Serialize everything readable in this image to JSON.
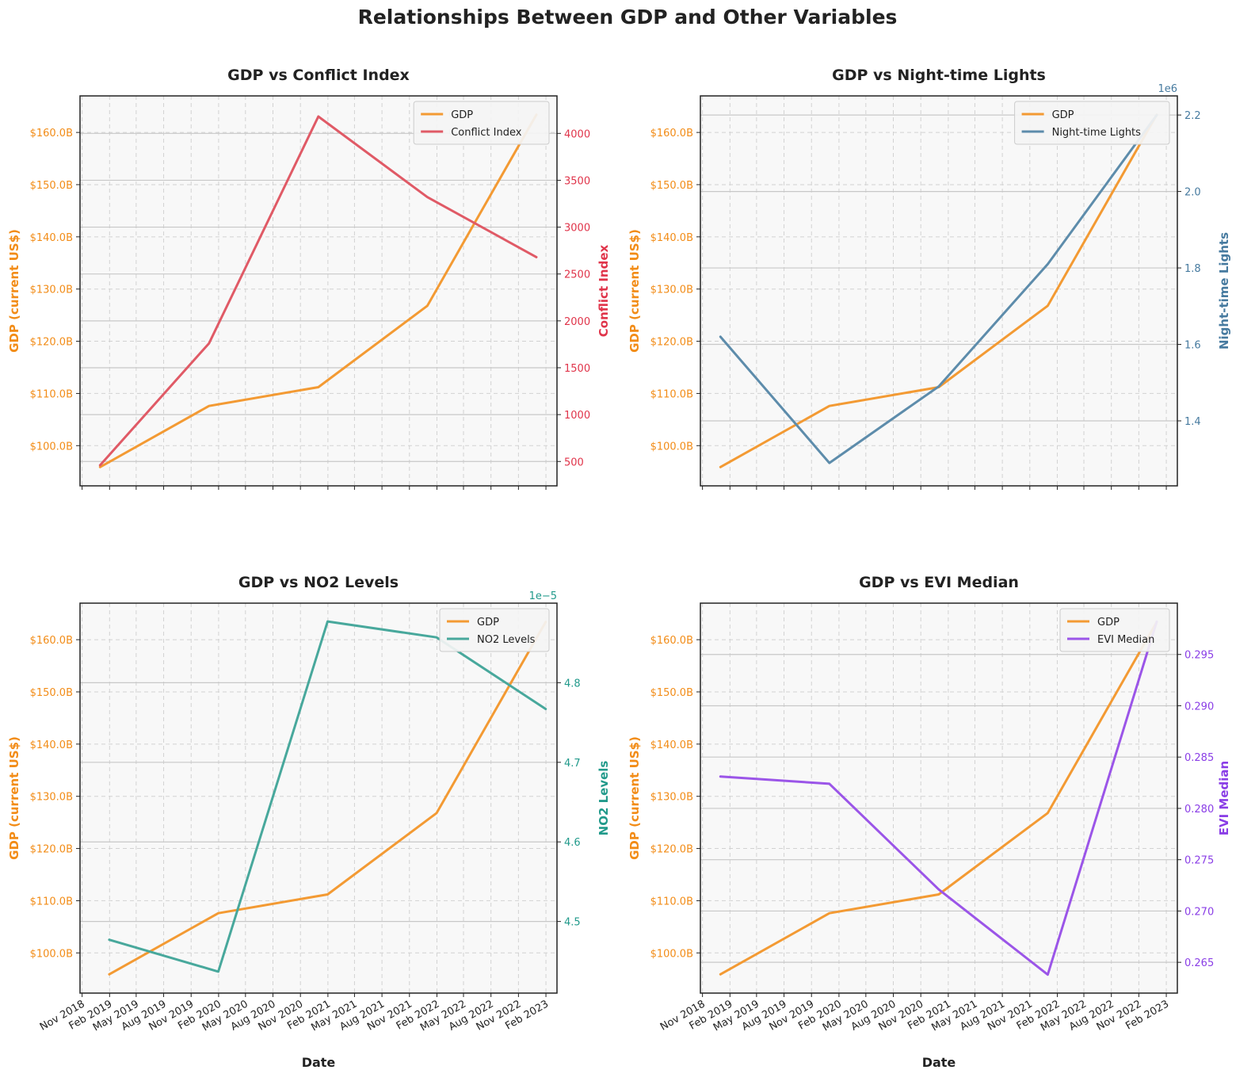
{
  "figure": {
    "title": "Relationships Between GDP and Other Variables"
  },
  "colors": {
    "gdp": "#f39a33",
    "gdp_axis": "#f28c17",
    "conflict": "#e05a66",
    "conflict_axis": "#e0344a",
    "ntl": "#5d8cab",
    "ntl_axis": "#467a9f",
    "no2": "#48a89c",
    "no2_axis": "#219a8b",
    "evi": "#9b55e8",
    "evi_axis": "#8a3ee6"
  },
  "chart_data": [
    {
      "type": "line",
      "title": "GDP vs Conflict Index",
      "xlabel": "",
      "ylabel_left": "GDP (current US$)",
      "ylabel_right": "Conflict Index",
      "x": [
        "2018-12-31",
        "2019-12-31",
        "2020-12-31",
        "2021-12-31",
        "2022-12-31"
      ],
      "xlim": [
        "2018-10-25",
        "2023-03-10"
      ],
      "x_ticks": [
        "Nov 2018",
        "Feb 2019",
        "May 2019",
        "Aug 2019",
        "Nov 2019",
        "Feb 2020",
        "May 2020",
        "Aug 2020",
        "Nov 2020",
        "Feb 2021",
        "May 2021",
        "Aug 2021",
        "Nov 2021",
        "Feb 2022",
        "May 2022",
        "Aug 2022",
        "Nov 2022",
        "Feb 2023"
      ],
      "show_x_ticks": false,
      "y_left": {
        "ylim": [
          92.3,
          167.0
        ],
        "ticks": [
          100,
          110,
          120,
          130,
          140,
          150,
          160
        ],
        "tick_labels": [
          "$100.0B",
          "$110.0B",
          "$120.0B",
          "$130.0B",
          "$140.0B",
          "$150.0B",
          "$160.0B"
        ]
      },
      "y_right": {
        "ylim": [
          240,
          4400
        ],
        "ticks": [
          500,
          1000,
          1500,
          2000,
          2500,
          3000,
          3500,
          4000
        ],
        "tick_labels": [
          "500",
          "1000",
          "1500",
          "2000",
          "2500",
          "3000",
          "3500",
          "4000"
        ],
        "offset": ""
      },
      "series": [
        {
          "name": "GDP",
          "axis": "left",
          "color_key": "gdp",
          "values": [
            95.9,
            107.6,
            111.2,
            126.8,
            163.4
          ]
        },
        {
          "name": "Conflict Index",
          "axis": "right",
          "color_key": "conflict",
          "values": [
            460,
            1760,
            4180,
            3320,
            2680
          ]
        }
      ],
      "legend": "top-right"
    },
    {
      "type": "line",
      "title": "GDP vs Night-time Lights",
      "xlabel": "",
      "ylabel_left": "GDP (current US$)",
      "ylabel_right": "Night-time Lights",
      "x": [
        "2018-12-31",
        "2019-12-31",
        "2020-12-31",
        "2021-12-31",
        "2022-12-31"
      ],
      "xlim": [
        "2018-10-25",
        "2023-03-10"
      ],
      "x_ticks": [
        "Nov 2018",
        "Feb 2019",
        "May 2019",
        "Aug 2019",
        "Nov 2019",
        "Feb 2020",
        "May 2020",
        "Aug 2020",
        "Nov 2020",
        "Feb 2021",
        "May 2021",
        "Aug 2021",
        "Nov 2021",
        "Feb 2022",
        "May 2022",
        "Aug 2022",
        "Nov 2022",
        "Feb 2023"
      ],
      "show_x_ticks": false,
      "y_left": {
        "ylim": [
          92.3,
          167.0
        ],
        "ticks": [
          100,
          110,
          120,
          130,
          140,
          150,
          160
        ],
        "tick_labels": [
          "$100.0B",
          "$110.0B",
          "$120.0B",
          "$130.0B",
          "$140.0B",
          "$150.0B",
          "$160.0B"
        ]
      },
      "y_right": {
        "ylim": [
          1.23,
          2.25
        ],
        "ticks": [
          1.4,
          1.6,
          1.8,
          2.0,
          2.2
        ],
        "tick_labels": [
          "1.4",
          "1.6",
          "1.8",
          "2.0",
          "2.2"
        ],
        "offset": "1e6"
      },
      "series": [
        {
          "name": "GDP",
          "axis": "left",
          "color_key": "gdp",
          "values": [
            95.9,
            107.6,
            111.2,
            126.8,
            163.4
          ]
        },
        {
          "name": "Night-time Lights",
          "axis": "right",
          "color_key": "ntl",
          "values": [
            1.62,
            1.29,
            1.49,
            1.81,
            2.2
          ]
        }
      ],
      "legend": "top-right"
    },
    {
      "type": "line",
      "title": "GDP vs NO2 Levels",
      "xlabel": "Date",
      "ylabel_left": "GDP (current US$)",
      "ylabel_right": "NO2 Levels",
      "x": [
        "2019-01-31",
        "2020-01-31",
        "2021-01-31",
        "2022-01-31",
        "2023-01-31"
      ],
      "xlim": [
        "2018-10-25",
        "2023-03-10"
      ],
      "x_ticks": [
        "Nov 2018",
        "Feb 2019",
        "May 2019",
        "Aug 2019",
        "Nov 2019",
        "Feb 2020",
        "May 2020",
        "Aug 2020",
        "Nov 2020",
        "Feb 2021",
        "May 2021",
        "Aug 2021",
        "Nov 2021",
        "Feb 2022",
        "May 2022",
        "Aug 2022",
        "Nov 2022",
        "Feb 2023"
      ],
      "show_x_ticks": true,
      "y_left": {
        "ylim": [
          92.3,
          167.0
        ],
        "ticks": [
          100,
          110,
          120,
          130,
          140,
          150,
          160
        ],
        "tick_labels": [
          "$100.0B",
          "$110.0B",
          "$120.0B",
          "$130.0B",
          "$140.0B",
          "$150.0B",
          "$160.0B"
        ]
      },
      "y_right": {
        "ylim": [
          4.41,
          4.9
        ],
        "ticks": [
          4.5,
          4.6,
          4.7,
          4.8
        ],
        "tick_labels": [
          "4.5",
          "4.6",
          "4.7",
          "4.8"
        ],
        "offset": "1e−5"
      },
      "series": [
        {
          "name": "GDP",
          "axis": "left",
          "color_key": "gdp",
          "values": [
            95.9,
            107.6,
            111.2,
            126.8,
            163.4
          ]
        },
        {
          "name": "NO2 Levels",
          "axis": "right",
          "color_key": "no2",
          "values": [
            4.477,
            4.437,
            4.877,
            4.857,
            4.767
          ]
        }
      ],
      "legend": "top-right"
    },
    {
      "type": "line",
      "title": "GDP vs EVI Median",
      "xlabel": "Date",
      "ylabel_left": "GDP (current US$)",
      "ylabel_right": "EVI Median",
      "x": [
        "2018-12-31",
        "2019-12-31",
        "2020-12-31",
        "2021-12-31",
        "2022-12-31"
      ],
      "xlim": [
        "2018-10-25",
        "2023-03-10"
      ],
      "x_ticks": [
        "Nov 2018",
        "Feb 2019",
        "May 2019",
        "Aug 2019",
        "Nov 2019",
        "Feb 2020",
        "May 2020",
        "Aug 2020",
        "Nov 2020",
        "Feb 2021",
        "May 2021",
        "Aug 2021",
        "Nov 2021",
        "Feb 2022",
        "May 2022",
        "Aug 2022",
        "Nov 2022",
        "Feb 2023"
      ],
      "show_x_ticks": true,
      "y_left": {
        "ylim": [
          92.3,
          167.0
        ],
        "ticks": [
          100,
          110,
          120,
          130,
          140,
          150,
          160
        ],
        "tick_labels": [
          "$100.0B",
          "$110.0B",
          "$120.0B",
          "$130.0B",
          "$140.0B",
          "$150.0B",
          "$160.0B"
        ]
      },
      "y_right": {
        "ylim": [
          0.262,
          0.3
        ],
        "ticks": [
          0.265,
          0.27,
          0.275,
          0.28,
          0.285,
          0.29,
          0.295
        ],
        "tick_labels": [
          "0.265",
          "0.270",
          "0.275",
          "0.280",
          "0.285",
          "0.290",
          "0.295"
        ],
        "offset": ""
      },
      "series": [
        {
          "name": "GDP",
          "axis": "left",
          "color_key": "gdp",
          "values": [
            95.9,
            107.6,
            111.2,
            126.8,
            163.4
          ]
        },
        {
          "name": "EVI Median",
          "axis": "right",
          "color_key": "evi",
          "values": [
            0.2831,
            0.2824,
            0.2721,
            0.2638,
            0.2982
          ]
        }
      ],
      "legend": "top-right"
    }
  ]
}
